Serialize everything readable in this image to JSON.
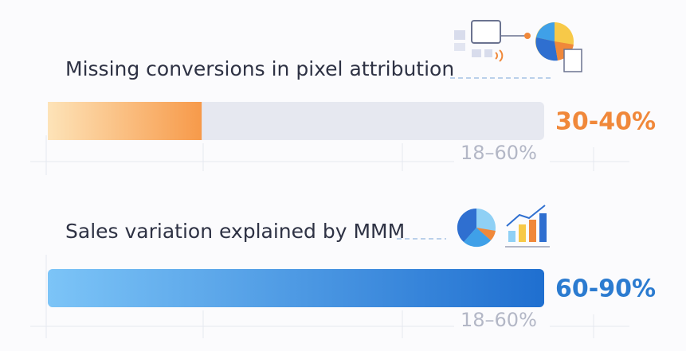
{
  "chart_data": {
    "type": "bar",
    "categories": [
      "Missing conversions in pixel attribution",
      "Sales variation explained by MMM"
    ],
    "values": [
      31,
      100
    ],
    "xlim": [
      0,
      100
    ],
    "highlights": [
      "30-40%",
      "60-90%"
    ],
    "notes": [
      "18–60%",
      "18–60%"
    ],
    "series_colors": [
      [
        "#fde3b8",
        "#f79a4a"
      ],
      [
        "#7cc4f7",
        "#1f6fd0"
      ]
    ],
    "highlight_colors": [
      "#f0883a",
      "#2b7bd0"
    ]
  }
}
